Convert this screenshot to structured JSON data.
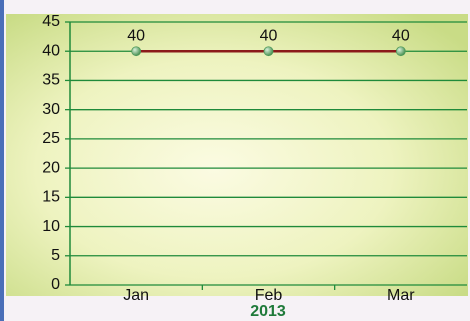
{
  "chart_data": {
    "type": "line",
    "categories": [
      "Jan",
      "Feb",
      "Mar"
    ],
    "series": [
      {
        "name": "2013",
        "color": "#8b1a1a",
        "values": [
          40,
          40,
          40
        ]
      }
    ],
    "xlabel": "2013",
    "ylim": [
      0,
      45
    ],
    "yticks": [
      0,
      5,
      10,
      15,
      20,
      25,
      30,
      35,
      40,
      45
    ],
    "grid": true,
    "grid_color": "#1f8a3a",
    "marker_color": "#4f9a5a"
  }
}
